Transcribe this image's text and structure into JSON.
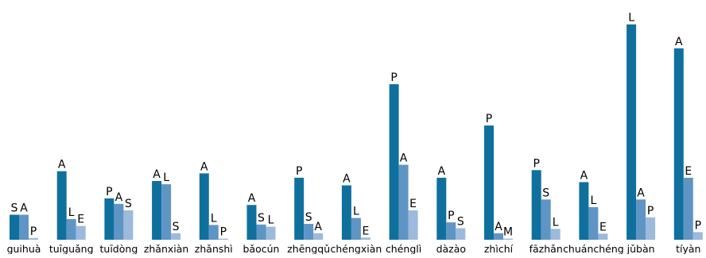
{
  "chart_data": {
    "type": "bar",
    "title": "",
    "xlabel": "",
    "ylabel": "",
    "grid": false,
    "legend": "none",
    "ylim": [
      0,
      100
    ],
    "colors": [
      "#0f709e",
      "#5f95c4",
      "#9bbadc"
    ],
    "categories": [
      {
        "name": "guihuà",
        "bars": [
          {
            "letter": "S",
            "value": 11.5
          },
          {
            "letter": "A",
            "value": 11.5
          },
          {
            "letter": "P",
            "value": 0.8
          }
        ]
      },
      {
        "name": "tuīguǎng",
        "bars": [
          {
            "letter": "A",
            "value": 31.5
          },
          {
            "letter": "L",
            "value": 9.5
          },
          {
            "letter": "E",
            "value": 6.3
          }
        ]
      },
      {
        "name": "tuīdòng",
        "bars": [
          {
            "letter": "P",
            "value": 19.0
          },
          {
            "letter": "A",
            "value": 16.5
          },
          {
            "letter": "S",
            "value": 13.5
          }
        ]
      },
      {
        "name": "zhǎnxiàn",
        "bars": [
          {
            "letter": "A",
            "value": 27.0
          },
          {
            "letter": "L",
            "value": 25.5
          },
          {
            "letter": "S",
            "value": 3.0
          }
        ]
      },
      {
        "name": "zhǎnshì",
        "bars": [
          {
            "letter": "A",
            "value": 30.5
          },
          {
            "letter": "L",
            "value": 6.8
          },
          {
            "letter": "P",
            "value": 0.5
          }
        ]
      },
      {
        "name": "bǎocún",
        "bars": [
          {
            "letter": "A",
            "value": 16.0
          },
          {
            "letter": "S",
            "value": 7.0
          },
          {
            "letter": "L",
            "value": 6.0
          }
        ]
      },
      {
        "name": "zhēngqǔ",
        "bars": [
          {
            "letter": "P",
            "value": 28.5
          },
          {
            "letter": "S",
            "value": 7.3
          },
          {
            "letter": "A",
            "value": 3.0
          }
        ]
      },
      {
        "name": "chéngxiàn",
        "bars": [
          {
            "letter": "A",
            "value": 25.0
          },
          {
            "letter": "L",
            "value": 10.0
          },
          {
            "letter": "E",
            "value": 1.0
          }
        ]
      },
      {
        "name": "chénglì",
        "bars": [
          {
            "letter": "P",
            "value": 71.5
          },
          {
            "letter": "A",
            "value": 34.5
          },
          {
            "letter": "E",
            "value": 13.5
          }
        ]
      },
      {
        "name": "dàzào",
        "bars": [
          {
            "letter": "A",
            "value": 28.5
          },
          {
            "letter": "P",
            "value": 8.0
          },
          {
            "letter": "S",
            "value": 5.3
          }
        ]
      },
      {
        "name": "zhìchí",
        "bars": [
          {
            "letter": "P",
            "value": 52.5
          },
          {
            "letter": "A",
            "value": 3.0
          },
          {
            "letter": "M",
            "value": 0.5
          }
        ]
      },
      {
        "name": "fāzhǎn",
        "bars": [
          {
            "letter": "P",
            "value": 32.0
          },
          {
            "letter": "S",
            "value": 18.5
          },
          {
            "letter": "L",
            "value": 5.0
          }
        ]
      },
      {
        "name": "chuánchéng",
        "bars": [
          {
            "letter": "A",
            "value": 26.5
          },
          {
            "letter": "L",
            "value": 15.0
          },
          {
            "letter": "E",
            "value": 2.8
          }
        ]
      },
      {
        "name": "jǔbàn",
        "bars": [
          {
            "letter": "L",
            "value": 99.0
          },
          {
            "letter": "A",
            "value": 18.5
          },
          {
            "letter": "P",
            "value": 10.3
          }
        ]
      },
      {
        "name": "tíyàn",
        "bars": [
          {
            "letter": "A",
            "value": 88.0
          },
          {
            "letter": "E",
            "value": 28.5
          },
          {
            "letter": "P",
            "value": 3.5
          }
        ]
      }
    ]
  }
}
